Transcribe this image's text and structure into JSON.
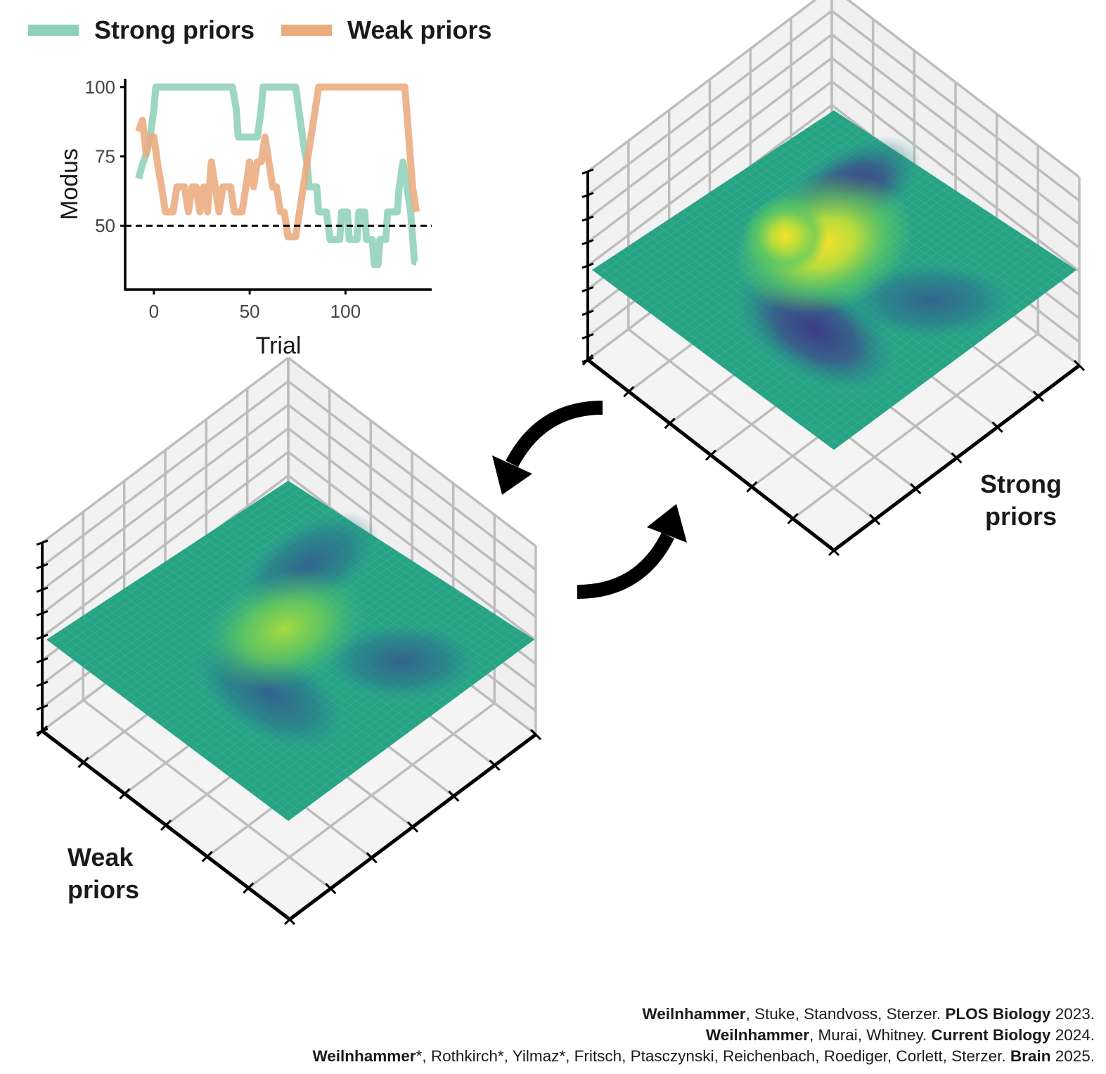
{
  "legend": {
    "items": [
      {
        "label": "Strong priors",
        "color": "#8fd0b8"
      },
      {
        "label": "Weak priors",
        "color": "#ebab7e"
      }
    ]
  },
  "chart_data": [
    {
      "type": "line",
      "xlabel": "Trial",
      "ylabel": "Modus",
      "xlim": [
        -15,
        145
      ],
      "ylim": [
        27,
        103
      ],
      "x_ticks": [
        0,
        50,
        100
      ],
      "y_ticks": [
        50,
        75,
        100
      ],
      "reference_line": {
        "y": 50,
        "style": "dashed"
      },
      "grid": false,
      "series": [
        {
          "name": "Strong priors",
          "color": "#8fd0b8",
          "points": [
            [
              -8,
              67
            ],
            [
              -6,
              72
            ],
            [
              -4,
              76
            ],
            [
              -2,
              82
            ],
            [
              0,
              92
            ],
            [
              1,
              100
            ],
            [
              41,
              100
            ],
            [
              43,
              92
            ],
            [
              44,
              82
            ],
            [
              54,
              82
            ],
            [
              56,
              92
            ],
            [
              57,
              100
            ],
            [
              74,
              100
            ],
            [
              76,
              90
            ],
            [
              78,
              80
            ],
            [
              80,
              72
            ],
            [
              81,
              64
            ],
            [
              85,
              64
            ],
            [
              86,
              55
            ],
            [
              90,
              55
            ],
            [
              92,
              45
            ],
            [
              97,
              45
            ],
            [
              98,
              55
            ],
            [
              101,
              55
            ],
            [
              102,
              45
            ],
            [
              106,
              45
            ],
            [
              107,
              55
            ],
            [
              110,
              55
            ],
            [
              111,
              45
            ],
            [
              114,
              45
            ],
            [
              115,
              36
            ],
            [
              117,
              36
            ],
            [
              118,
              45
            ],
            [
              121,
              45
            ],
            [
              122,
              55
            ],
            [
              127,
              55
            ],
            [
              128,
              64
            ],
            [
              130,
              73
            ],
            [
              132,
              64
            ],
            [
              134,
              55
            ],
            [
              135,
              46
            ],
            [
              136,
              37
            ],
            [
              137,
              37
            ]
          ]
        },
        {
          "name": "Weak priors",
          "color": "#ebab7e",
          "points": [
            [
              -8,
              84
            ],
            [
              -6,
              88
            ],
            [
              -4,
              76
            ],
            [
              -2,
              82
            ],
            [
              0,
              82
            ],
            [
              2,
              72
            ],
            [
              4,
              64
            ],
            [
              6,
              55
            ],
            [
              10,
              55
            ],
            [
              12,
              64
            ],
            [
              16,
              64
            ],
            [
              18,
              55
            ],
            [
              20,
              64
            ],
            [
              22,
              64
            ],
            [
              24,
              55
            ],
            [
              26,
              64
            ],
            [
              28,
              55
            ],
            [
              30,
              73
            ],
            [
              32,
              64
            ],
            [
              34,
              55
            ],
            [
              36,
              64
            ],
            [
              40,
              64
            ],
            [
              42,
              55
            ],
            [
              46,
              55
            ],
            [
              48,
              64
            ],
            [
              50,
              73
            ],
            [
              52,
              64
            ],
            [
              54,
              73
            ],
            [
              56,
              73
            ],
            [
              58,
              82
            ],
            [
              60,
              73
            ],
            [
              62,
              64
            ],
            [
              64,
              64
            ],
            [
              66,
              55
            ],
            [
              68,
              55
            ],
            [
              70,
              46
            ],
            [
              74,
              46
            ],
            [
              76,
              55
            ],
            [
              78,
              64
            ],
            [
              80,
              73
            ],
            [
              82,
              82
            ],
            [
              84,
              91
            ],
            [
              86,
              100
            ],
            [
              131,
              100
            ],
            [
              133,
              82
            ],
            [
              135,
              64
            ],
            [
              137,
              55
            ]
          ]
        }
      ]
    },
    {
      "type": "surface",
      "label_lines": [
        "Strong",
        "priors"
      ],
      "colormap": [
        "#440154",
        "#3b528b",
        "#21918c",
        "#5ec962",
        "#fde725"
      ],
      "grid": true
    },
    {
      "type": "surface",
      "label_lines": [
        "Weak",
        "priors"
      ],
      "colormap": [
        "#440154",
        "#3b528b",
        "#21918c",
        "#5ec962",
        "#fde725"
      ],
      "grid": true
    }
  ],
  "references": [
    {
      "segments": [
        {
          "text": "Weilnhammer",
          "bold": true
        },
        {
          "text": ", Stuke, Standvoss, Sterzer. ",
          "bold": false
        },
        {
          "text": "PLOS Biology",
          "bold": true
        },
        {
          "text": " 2023.",
          "bold": false
        }
      ]
    },
    {
      "segments": [
        {
          "text": "Weilnhammer",
          "bold": true
        },
        {
          "text": ", Murai, Whitney. ",
          "bold": false
        },
        {
          "text": "Current Biology",
          "bold": true
        },
        {
          "text": " 2024.",
          "bold": false
        }
      ]
    },
    {
      "segments": [
        {
          "text": "Weilnhammer",
          "bold": true
        },
        {
          "text": "*, Rothkirch*, Yilmaz*, Fritsch, Ptasczynski, Reichenbach, Roediger, Corlett, Sterzer. ",
          "bold": false
        },
        {
          "text": "Brain",
          "bold": true
        },
        {
          "text": " 2025.",
          "bold": false
        }
      ]
    }
  ]
}
